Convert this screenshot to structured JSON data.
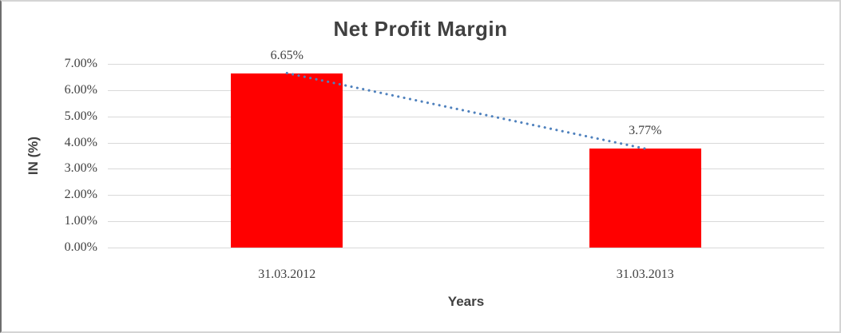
{
  "chart_data": {
    "type": "bar",
    "title": "Net Profit Margin",
    "xlabel": "Years",
    "ylabel": "IN (%)",
    "categories": [
      "31.03.2012",
      "31.03.2013"
    ],
    "series": [
      {
        "name": "Net Profit Margin",
        "values": [
          6.65,
          3.77
        ],
        "point_labels": [
          "6.65%",
          "3.77%"
        ],
        "color": "#ff0000"
      }
    ],
    "ylim": [
      0,
      7
    ],
    "ytick_step": 1,
    "ytick_labels": [
      "0.00%",
      "1.00%",
      "2.00%",
      "3.00%",
      "4.00%",
      "5.00%",
      "6.00%",
      "7.00%"
    ],
    "grid": true,
    "legend": "none",
    "trendline": {
      "type": "linear",
      "style": "round-dotted",
      "color": "#4f81bd",
      "from": [
        0,
        6.65
      ],
      "to": [
        1,
        3.77
      ]
    }
  },
  "colors": {
    "bar": "#ff0000",
    "gridline": "#d9d9d9",
    "text": "#404040",
    "trendline": "#4f81bd",
    "background": "#ffffff"
  }
}
